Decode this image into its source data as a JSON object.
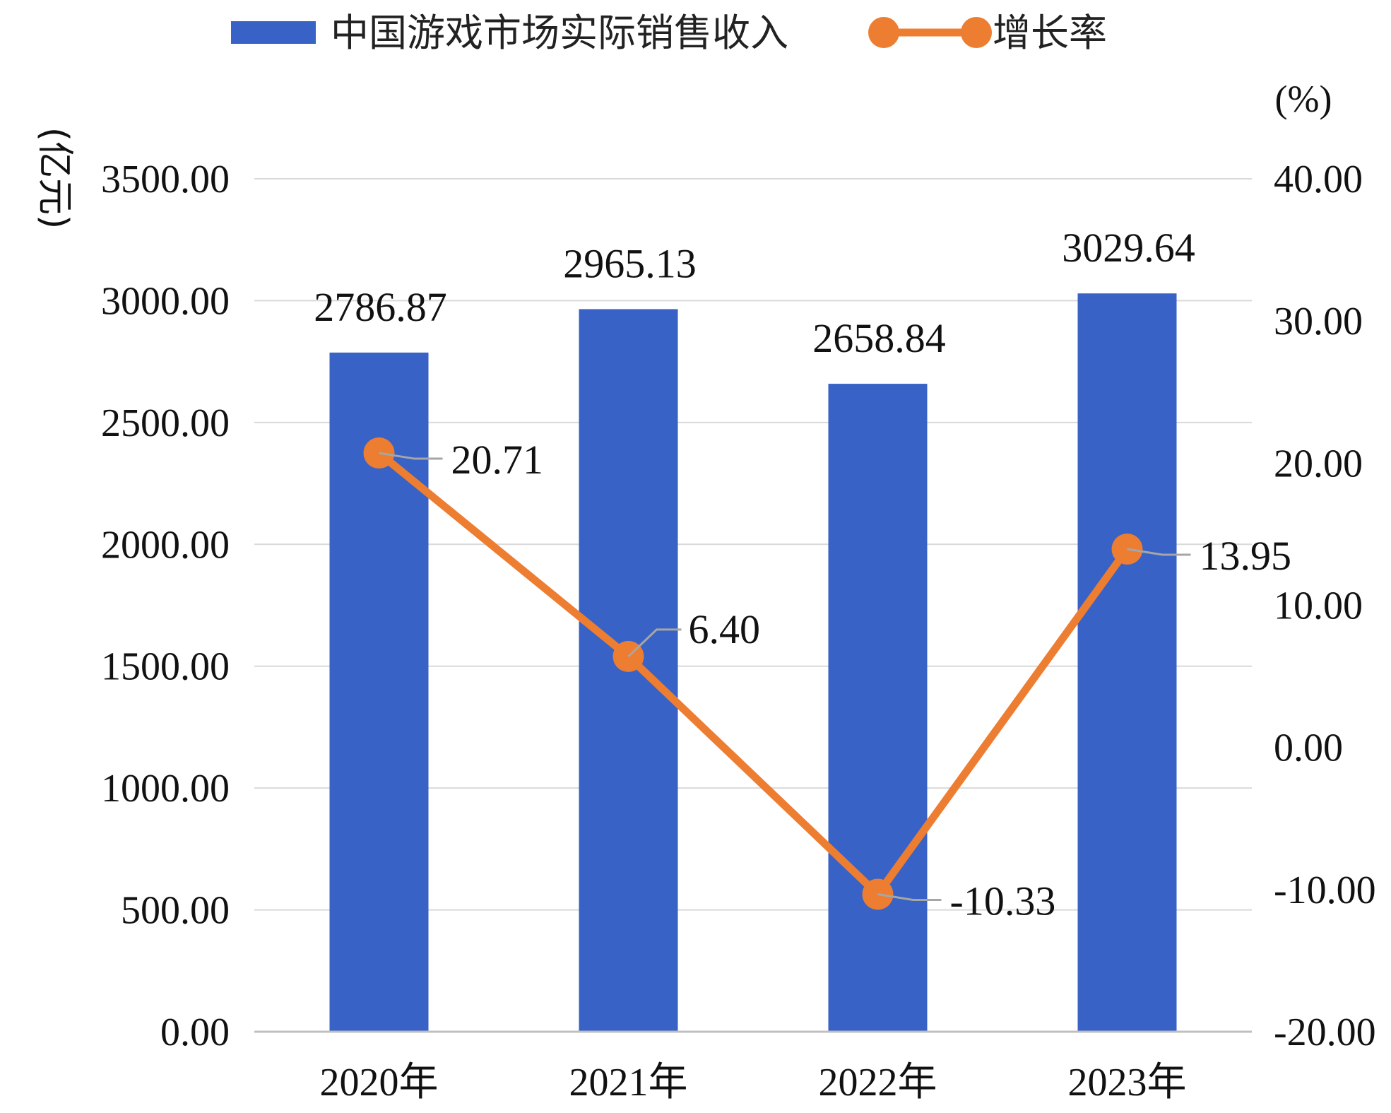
{
  "chart_data": {
    "type": "bar",
    "categories": [
      "2020年",
      "2021年",
      "2022年",
      "2023年"
    ],
    "series": [
      {
        "name": "中国游戏市场实际销售收入",
        "type": "bar",
        "axis": "left",
        "values": [
          2786.87,
          2965.13,
          2658.84,
          3029.64
        ],
        "labels": [
          "2786.87",
          "2965.13",
          "2658.84",
          "3029.64"
        ],
        "color": "#3862C6"
      },
      {
        "name": "增长率",
        "type": "line",
        "axis": "right",
        "values": [
          20.71,
          6.4,
          -10.33,
          13.95
        ],
        "labels": [
          "20.71",
          "6.40",
          "-10.33",
          "13.95"
        ],
        "color": "#ED7D31"
      }
    ],
    "left_axis": {
      "label": "(亿元)",
      "ylim": [
        0,
        3500
      ],
      "ticks": [
        "0.00",
        "500.00",
        "1000.00",
        "1500.00",
        "2000.00",
        "2500.00",
        "3000.00",
        "3500.00"
      ]
    },
    "right_axis": {
      "label": "(%)",
      "ylim": [
        -20,
        40
      ],
      "ticks": [
        "-20.00",
        "-10.00",
        "0.00",
        "10.00",
        "20.00",
        "30.00",
        "40.00"
      ]
    },
    "grid": true,
    "legend": "top-center",
    "gridline_color": "#D9D9D9",
    "axis_line_color": "#BFBFBF"
  }
}
